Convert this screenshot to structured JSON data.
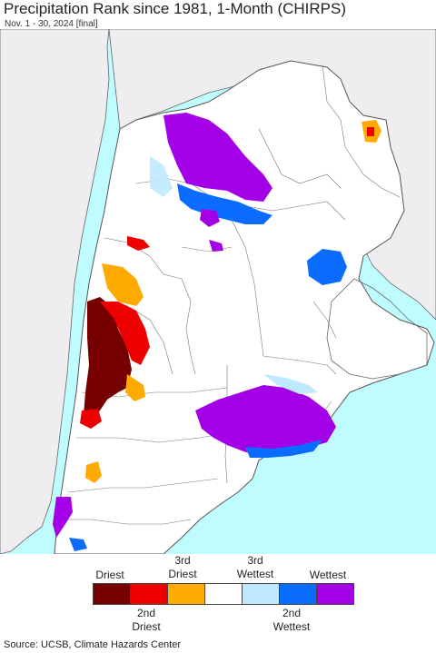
{
  "title": "Precipitation Rank since 1981, 1-Month (CHIRPS)",
  "subtitle": "Nov. 1 - 30, 2024 [final]",
  "colors": {
    "ocean": "#bffcff",
    "land_outside": "#efedf0",
    "land_inside": "#ffffff",
    "border": "#555555"
  },
  "legend": {
    "top_labels": [
      "Driest",
      "3rd\nDriest",
      "3rd\nWettest",
      "Wettest"
    ],
    "bottom_labels": [
      "2nd\nDriest",
      "2nd\nWettest"
    ],
    "categories": [
      {
        "name": "Driest",
        "color": "#760000"
      },
      {
        "name": "2nd Driest",
        "color": "#ee0000"
      },
      {
        "name": "3rd Driest",
        "color": "#ffaa00"
      },
      {
        "name": "Normal",
        "color": "#ffffff"
      },
      {
        "name": "3rd Wettest",
        "color": "#bfe9ff"
      },
      {
        "name": "2nd Wettest",
        "color": "#0a6bff"
      },
      {
        "name": "Wettest",
        "color": "#a400e8"
      }
    ]
  },
  "source": "Source: UCSB, Climate Hazards Center"
}
